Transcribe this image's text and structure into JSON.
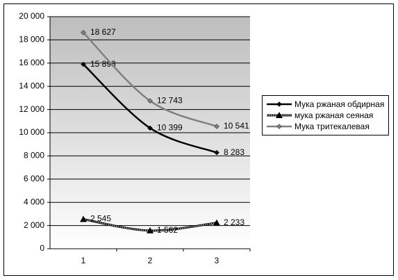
{
  "chart_data": {
    "type": "line",
    "categories": [
      "1",
      "2",
      "3"
    ],
    "series": [
      {
        "name": "Мука ржаная обдирная",
        "color": "#000000",
        "line_style": "solid",
        "marker": "diamond",
        "values": [
          15893,
          10399,
          8283
        ],
        "value_labels": [
          "15 893",
          "10 399",
          "8 283"
        ]
      },
      {
        "name": "мука ржаная сеяная",
        "color": "#000000",
        "line_style": "dotted",
        "marker": "triangle",
        "values": [
          2545,
          1562,
          2233
        ],
        "value_labels": [
          "2 545",
          "1 562",
          "2 233"
        ]
      },
      {
        "name": "Мука тритекалевая",
        "color": "#808080",
        "line_style": "solid",
        "marker": "diamond",
        "values": [
          18627,
          12743,
          10541
        ],
        "value_labels": [
          "18 627",
          "12 743",
          "10 541"
        ]
      }
    ],
    "ylim": [
      0,
      20000
    ],
    "yticks": [
      0,
      {
        "value": 2000,
        "label": "2 000"
      },
      {
        "value": 4000,
        "label": "4 000"
      },
      {
        "value": 6000,
        "label": "6 000"
      },
      {
        "value": 8000,
        "label": "8 000"
      },
      {
        "value": 10000,
        "label": "10 000"
      },
      {
        "value": 12000,
        "label": "12 000"
      },
      {
        "value": 14000,
        "label": "14 000"
      },
      {
        "value": 16000,
        "label": "16 000"
      },
      {
        "value": 18000,
        "label": "18 000"
      },
      {
        "value": 20000,
        "label": "20 000"
      }
    ],
    "grid": true,
    "legend": "right"
  }
}
